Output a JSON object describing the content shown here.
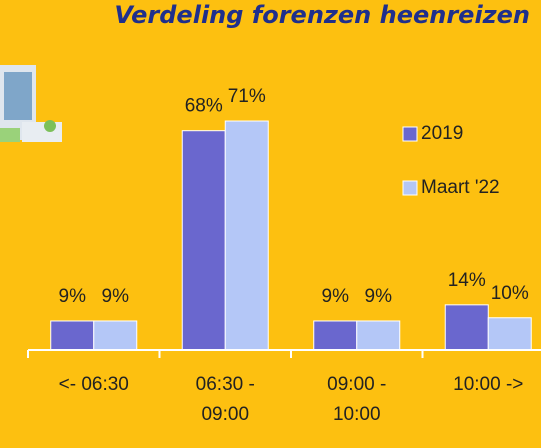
{
  "chart_data": {
    "type": "bar",
    "title": "Verdeling forenzen heenreizen",
    "categories": [
      "<- 06:30",
      "06:30 - 09:00",
      "09:00 - 10:00",
      "10:00 ->"
    ],
    "series": [
      {
        "name": "2019",
        "color": "#6a67ce",
        "values": [
          9,
          68,
          9,
          14
        ],
        "value_labels": [
          "9%",
          "68%",
          "9%",
          "14%"
        ]
      },
      {
        "name": "Maart '22",
        "color": "#b4c7f7",
        "values": [
          9,
          71,
          9,
          10
        ],
        "value_labels": [
          "9%",
          "71%",
          "9%",
          "10%"
        ]
      }
    ],
    "ylim": [
      0,
      80
    ],
    "legend": "right"
  }
}
